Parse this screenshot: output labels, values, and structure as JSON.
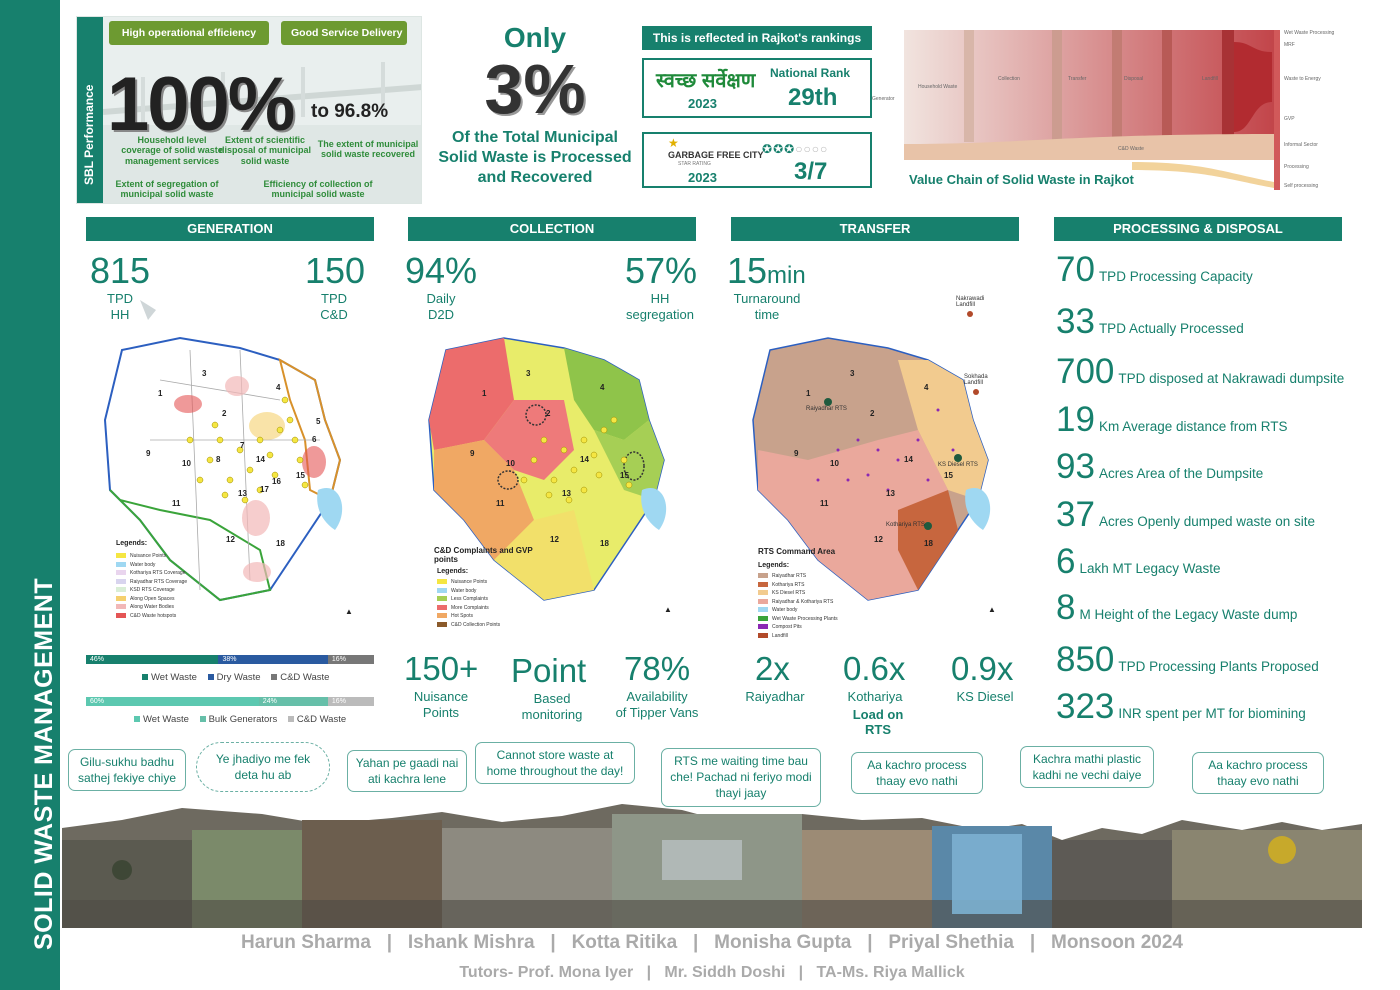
{
  "sidebar": {
    "title": "SOLID WASTE MANAGEMENT"
  },
  "sbl": {
    "label": "SBL Performance",
    "pill1": "High operational efficiency",
    "pill2": "Good Service Delivery",
    "big_value": "100%",
    "to_value": "to 96.8%",
    "note_household": "Household level coverage of solid waste management services",
    "note_scientific": "Extent of scientific disposal of municipal solid waste",
    "note_recovered": "The extent of municipal solid waste recovered",
    "note_segregation": "Extent of segregation of municipal solid waste",
    "note_collection": "Efficiency of collection of municipal solid waste"
  },
  "headline": {
    "only": "Only",
    "value": "3%",
    "line1": "Of the Total Municipal",
    "line2": "Solid Waste is Processed",
    "line3": "and Recovered"
  },
  "rankings": {
    "title": "This is reflected in Rajkot's rankings",
    "survey_logo": "स्वच्छ सर्वेक्षण",
    "survey_year": "2023",
    "national_rank_label": "National Rank",
    "national_rank_value": "29th",
    "gfc_logo": "GARBAGE FREE CITY",
    "gfc_sub": "STAR RATING",
    "gfc_year": "2023",
    "stars_filled": 3,
    "stars_total": 7,
    "gfc_value": "3/7"
  },
  "value_chain": {
    "caption": "Value Chain of Solid Waste in Rajkot",
    "generator": "Generator",
    "stage_household": "Household Waste",
    "stage_collection": "Collection",
    "stage_transfer": "Transfer",
    "stage_disposal": "Disposal",
    "stage_landfill": "Landfill",
    "stage_cd": "C&D Waste",
    "out_wet": "Wet Waste Processing",
    "out_mrf": "MRF",
    "out_wte": "Waste to Energy",
    "out_gvp": "GVP",
    "out_informal": "Informal Sector",
    "out_processing": "Processing",
    "out_self": "Self processing"
  },
  "generation": {
    "header": "GENERATION",
    "hh_value": "815",
    "hh_label": "TPD\nHH",
    "cd_value": "150",
    "cd_label": "TPD\nC&D",
    "legend_title": "Legends:",
    "legend_items": [
      "Nuisance Points",
      "Water body",
      "Kothariya RTS Coverage",
      "Raiyadhar RTS Coverage",
      "KSD RTS Coverage",
      "Along Open Spaces",
      "Along Water Bodies",
      "C&D Waste hotspots"
    ],
    "bar1": {
      "wet": 46,
      "dry": 38,
      "cd": 16,
      "wet_label": "46%",
      "dry_label": "38%",
      "cd_label": "16%"
    },
    "legend1": [
      "Wet Waste",
      "Dry Waste",
      "C&D Waste"
    ],
    "bar2": {
      "wet": 60,
      "bulk": 24,
      "cd": 16,
      "wet_label": "60%",
      "bulk_label": "24%",
      "cd_label": "16%"
    },
    "legend2": [
      "Wet Waste",
      "Bulk Generators",
      "C&D Waste"
    ]
  },
  "collection": {
    "header": "COLLECTION",
    "d2d_value": "94%",
    "d2d_label": "Daily\nD2D",
    "seg_value": "57%",
    "seg_label": "HH\nsegregation",
    "legend_title": "C&D Complaints and GVP points",
    "legend_sub": "Legends:",
    "legend_items": [
      "Nuisance Points",
      "Water body",
      "Less Complaints",
      "More Complaints",
      "Hot Spots",
      "C&D Collection Points"
    ],
    "nuisance_value": "150+",
    "nuisance_label": "Nuisance\nPoints",
    "point_value": "Point",
    "point_label": "Based\nmonitoring",
    "tipper_value": "78%",
    "tipper_label": "Availability\nof Tipper Vans"
  },
  "transfer": {
    "header": "TRANSFER",
    "time_value": "15",
    "time_unit": "min",
    "time_label": "Turnaround\ntime",
    "nakrawadi": "Nakrawadi Landfill",
    "sokhada": "Sokhada Landfill",
    "raiyadhar_rts": "Raiyadhar RTS",
    "ks_diesel_rts": "KS Diesel RTS",
    "kothariya_rts": "Kothariya RTS",
    "legend_title": "RTS Command Area",
    "legend_sub": "Legends:",
    "legend_items": [
      "Raiyadhar RTS",
      "Kothariya RTS",
      "KS Diesel RTS",
      "Raiyadhar & Kothariya RTS",
      "Water body",
      "Wet Waste Processing Plants",
      "Compost Pits",
      "Landfill"
    ],
    "load1_value": "2x",
    "load1_label": "Raiyadhar",
    "load2_value": "0.6x",
    "load2_label": "Kothariya",
    "load3_value": "0.9x",
    "load3_label": "KS Diesel",
    "load_caption": "Load on RTS"
  },
  "processing": {
    "header": "PROCESSING & DISPOSAL",
    "rows": [
      {
        "value": "70",
        "text": "TPD Processing Capacity"
      },
      {
        "value": "33",
        "text": "TPD Actually Processed"
      },
      {
        "value": "700",
        "text": "TPD disposed at Nakrawadi dumpsite"
      },
      {
        "value": "19",
        "text": "Km Average distance from RTS"
      },
      {
        "value": "93",
        "text": "Acres Area of the Dumpsite"
      },
      {
        "value": "37",
        "text": "Acres Openly dumped waste on site"
      },
      {
        "value": "6",
        "text": "Lakh MT Legacy Waste"
      },
      {
        "value": "8",
        "text": "M Height of the Legacy Waste dump"
      },
      {
        "value": "850",
        "text": "TPD Processing Plants Proposed"
      },
      {
        "value": "323",
        "text": "INR spent per MT for biomining"
      }
    ]
  },
  "bubbles": {
    "b1": "Gilu-sukhu badhu sathej fekiye chiye",
    "b2": "Ye jhadiyo me fek deta hu ab",
    "b3": "Yahan pe gaadi nai ati kachra lene",
    "b4": "Cannot store waste at home throughout the day!",
    "b5": "RTS me waiting time bau che! Pachad ni feriyo modi thayi jaay",
    "b6": "Aa kachro process thaay evo nathi",
    "b7": "Kachra mathi plastic kadhi ne vechi daiye",
    "b8": "Aa kachro process thaay evo nathi"
  },
  "credits": {
    "names": "Harun Sharma   |   Ishank Mishra   |   Kotta Ritika   |   Monisha Gupta   |   Priyal Shethia   |   Monsoon 2024",
    "tutors": "Tutors- Prof. Mona Iyer   |   Mr. Siddh Doshi   |   TA-Ms. Riya Mallick"
  },
  "colors": {
    "teal": "#17806d",
    "green_pill": "#6d9a31",
    "dark_blue": "#1d5fa8",
    "wet": "#17806d",
    "dry": "#2a5aa0",
    "cd": "#777777",
    "light_teal": "#5cc8b0"
  }
}
